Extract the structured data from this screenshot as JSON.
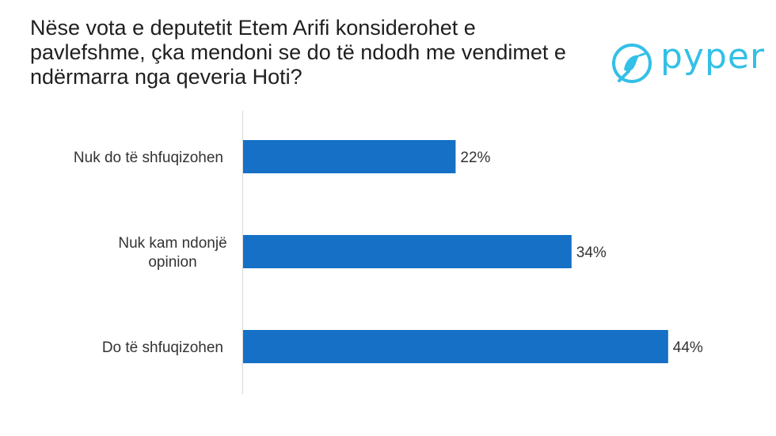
{
  "title": "Nëse vota e deputetit Etem Arifi konsiderohet e pavlefshme, çka mendoni se do të ndodh me vendimet e ndërmarra nga qeveria Hoti?",
  "logo": {
    "text": "pyper",
    "icon": "bird-logo-icon",
    "color": "#33c0e6"
  },
  "chart_data": {
    "type": "bar",
    "orientation": "horizontal",
    "title": "Nëse vota e deputetit Etem Arifi konsiderohet e pavlefshme, çka mendoni se do të ndodh me vendimet e ndërmarra nga qeveria Hoti?",
    "categories": [
      [
        "Nuk do të shfuqizohen"
      ],
      [
        "Nuk kam ndonjë",
        "opinion"
      ],
      [
        "Do të shfuqizohen"
      ]
    ],
    "values": [
      22,
      34,
      44
    ],
    "value_labels": [
      "22%",
      "34%",
      "44%"
    ],
    "unit": "%",
    "xlim": [
      0,
      50
    ],
    "bar_color": "#1570c6",
    "grid": false,
    "xlabel": "",
    "ylabel": ""
  }
}
